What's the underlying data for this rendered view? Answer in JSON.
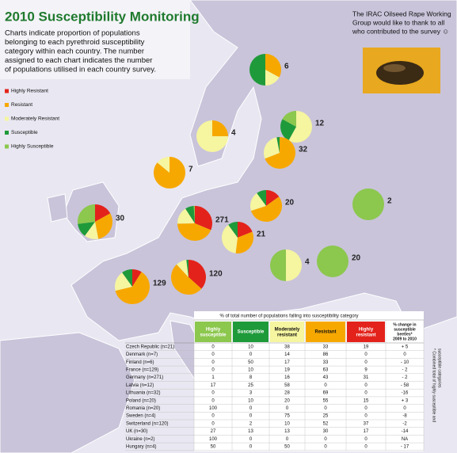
{
  "header": {
    "title": "2010 Susceptibility Monitoring",
    "description": [
      "Charts indicate proportion of populations",
      "belonging to each pyrethroid susceptibility",
      "category within each country. The number",
      "assigned to each chart indicates the number",
      "of populations utilised in each country survey."
    ]
  },
  "thanks": [
    "The IRAC Oilseed Rape Working",
    "Group would like to thank to all",
    "who contributed to the survey ☺"
  ],
  "legend": [
    {
      "label": "Highly Resistant",
      "color": "#e3231b"
    },
    {
      "label": "Resistant",
      "color": "#f7a800"
    },
    {
      "label": "Moderately Resistant",
      "color": "#f6f5a0"
    },
    {
      "label": "Susceptible",
      "color": "#1f9a3a"
    },
    {
      "label": "Highly Susceptible",
      "color": "#8cc74e"
    }
  ],
  "pies": [
    {
      "n": 6
    },
    {
      "n": 4
    },
    {
      "n": 12
    },
    {
      "n": 7
    },
    {
      "n": 32
    },
    {
      "n": 2
    },
    {
      "n": 30
    },
    {
      "n": 271
    },
    {
      "n": 20
    },
    {
      "n": 21
    },
    {
      "n": 4
    },
    {
      "n": 20
    },
    {
      "n": 129
    },
    {
      "n": 120
    }
  ],
  "table": {
    "title": "% of total number of populations falling into susceptibility category",
    "columns": [
      "Highly susceptible",
      "Susceptible",
      "Moderately resistant",
      "Resistant",
      "Highly resistant"
    ],
    "change_column": [
      "% change in",
      "susceptible",
      "beetles*",
      "2009 to 2010"
    ],
    "rows": [
      {
        "country": "Czech Republic (n=21)",
        "values": [
          0,
          10,
          38,
          33,
          19
        ],
        "change": "+ 5"
      },
      {
        "country": "Denmark (n=7)",
        "values": [
          0,
          0,
          14,
          86,
          0
        ],
        "change": 0
      },
      {
        "country": "Finland (n=6)",
        "values": [
          0,
          50,
          17,
          33,
          0
        ],
        "change": "- 10"
      },
      {
        "country": "France (n=129)",
        "values": [
          0,
          10,
          19,
          63,
          9
        ],
        "change": "- 2"
      },
      {
        "country": "Germany (n=271)",
        "values": [
          1,
          8,
          16,
          43,
          31
        ],
        "change": "- 2"
      },
      {
        "country": "Latvia (n=12)",
        "values": [
          17,
          25,
          58,
          0,
          0
        ],
        "change": "- 58"
      },
      {
        "country": "Lithuania (n=32)",
        "values": [
          0,
          3,
          28,
          69,
          0
        ],
        "change": "-16"
      },
      {
        "country": "Poland (n=20)",
        "values": [
          0,
          10,
          20,
          55,
          15
        ],
        "change": "+ 3"
      },
      {
        "country": "Romania (n=20)",
        "values": [
          100,
          0,
          0,
          0,
          0
        ],
        "change": 0
      },
      {
        "country": "Sweden (n=4)",
        "values": [
          0,
          0,
          75,
          25,
          0
        ],
        "change": "-8"
      },
      {
        "country": "Switzerland (n=120)",
        "values": [
          0,
          2,
          10,
          52,
          37
        ],
        "change": "-2"
      },
      {
        "country": "UK (n=30)",
        "values": [
          27,
          13,
          13,
          30,
          17
        ],
        "change": "-14"
      },
      {
        "country": "Ukraine (n=2)",
        "values": [
          100,
          0,
          0,
          0,
          0
        ],
        "change": "NA"
      },
      {
        "country": "Hungary (n=4)",
        "values": [
          50,
          0,
          50,
          0,
          0
        ],
        "change": "- 17"
      }
    ],
    "footnote": [
      "* Combined total of highly susceptible and",
      "susceptible categories"
    ]
  }
}
